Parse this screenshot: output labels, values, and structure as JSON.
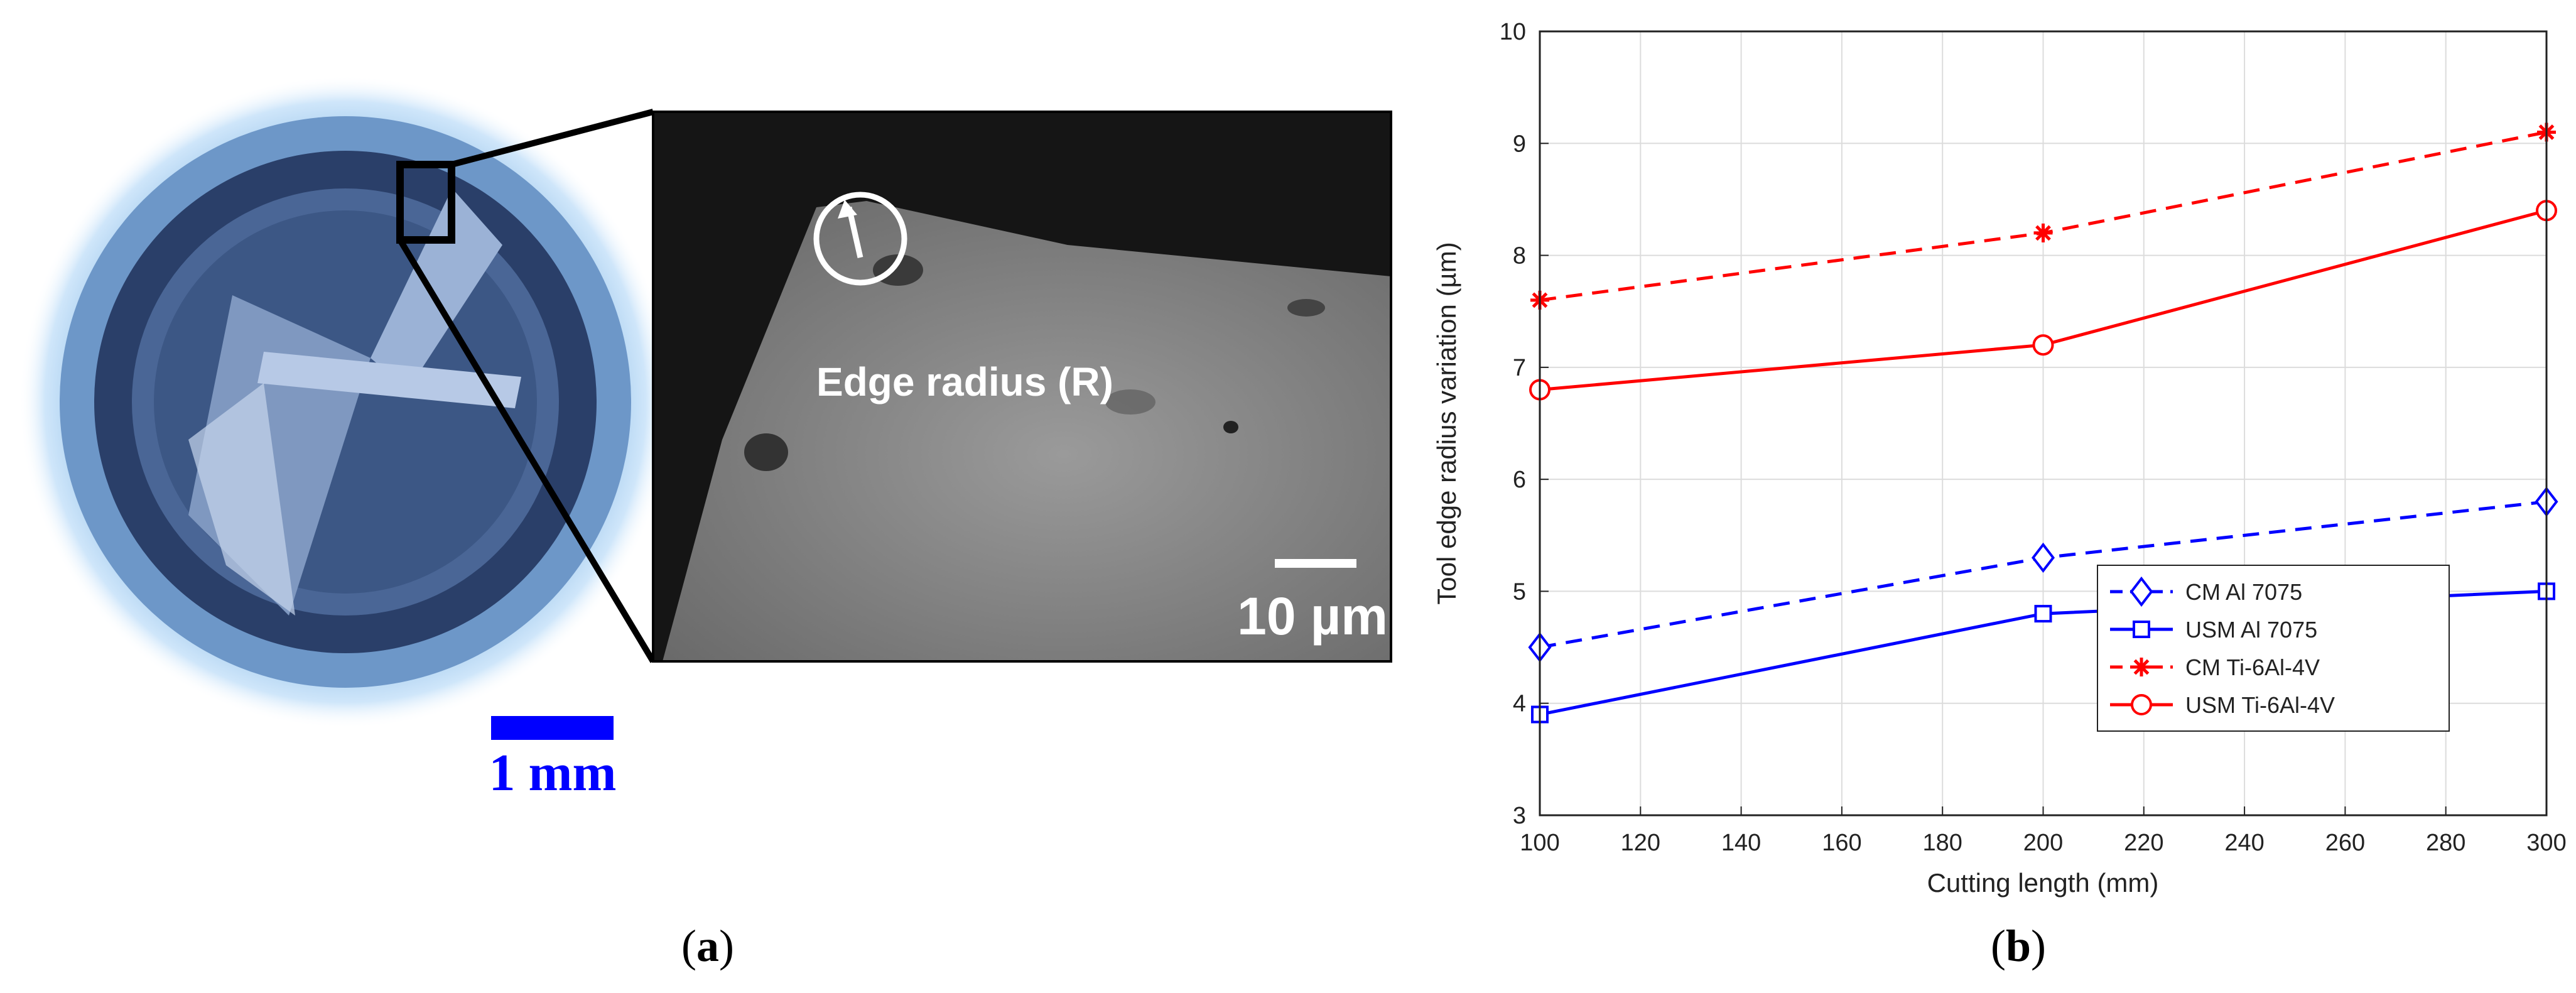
{
  "panel_a": {
    "label_open": "(",
    "label_letter": "a",
    "label_close": ")",
    "scale_bar_tool": "1 mm",
    "scale_bar_sem": "10 µm",
    "annotation": "Edge radius (R)"
  },
  "panel_b": {
    "label_open": "(",
    "label_letter": "b",
    "label_close": ")"
  },
  "chart_data": {
    "type": "line",
    "xlabel": "Cutting length (mm)",
    "ylabel": "Tool edge radius variation (µm)",
    "xlim": [
      100,
      300
    ],
    "ylim": [
      3,
      10
    ],
    "xticks": [
      100,
      120,
      140,
      160,
      180,
      200,
      220,
      240,
      260,
      280,
      300
    ],
    "yticks": [
      3,
      4,
      5,
      6,
      7,
      8,
      9,
      10
    ],
    "grid": true,
    "legend_position": "bottom-right",
    "x": [
      100,
      200,
      300
    ],
    "series": [
      {
        "name": "CM Al 7075",
        "values": [
          4.5,
          5.3,
          5.8
        ],
        "color": "#0000ff",
        "dash": "dashed",
        "marker": "diamond"
      },
      {
        "name": "USM Al 7075",
        "values": [
          3.9,
          4.8,
          5.0
        ],
        "color": "#0000ff",
        "dash": "solid",
        "marker": "square"
      },
      {
        "name": "CM Ti-6Al-4V",
        "values": [
          7.6,
          8.2,
          9.1
        ],
        "color": "#ff0000",
        "dash": "dashed",
        "marker": "asterisk"
      },
      {
        "name": "USM Ti-6Al-4V",
        "values": [
          6.8,
          7.2,
          8.4
        ],
        "color": "#ff0000",
        "dash": "solid",
        "marker": "circle"
      }
    ]
  }
}
